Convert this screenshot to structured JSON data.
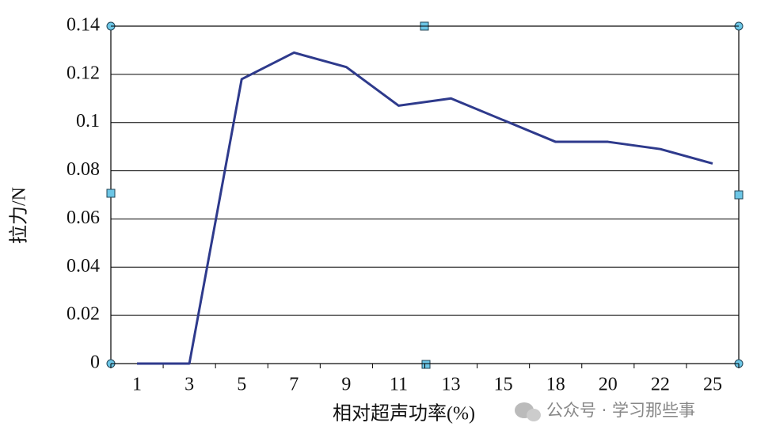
{
  "chart_data": {
    "type": "line",
    "x_label": "相对超声功率(%)",
    "y_label": "拉力/N",
    "categories": [
      "1",
      "3",
      "5",
      "7",
      "9",
      "11",
      "13",
      "15",
      "18",
      "20",
      "22",
      "25"
    ],
    "series": [
      {
        "color": "#2e3a8c",
        "values": [
          0,
          0,
          0.118,
          0.129,
          0.123,
          0.107,
          0.11,
          0.101,
          0.092,
          0.092,
          0.089,
          0.083
        ]
      }
    ],
    "ylim": [
      0,
      0.14
    ],
    "yticks": [
      0,
      0.02,
      0.04,
      0.06,
      0.08,
      0.1,
      0.12,
      0.14
    ],
    "grid": true
  },
  "watermark": "公众号 · 学习那些事"
}
